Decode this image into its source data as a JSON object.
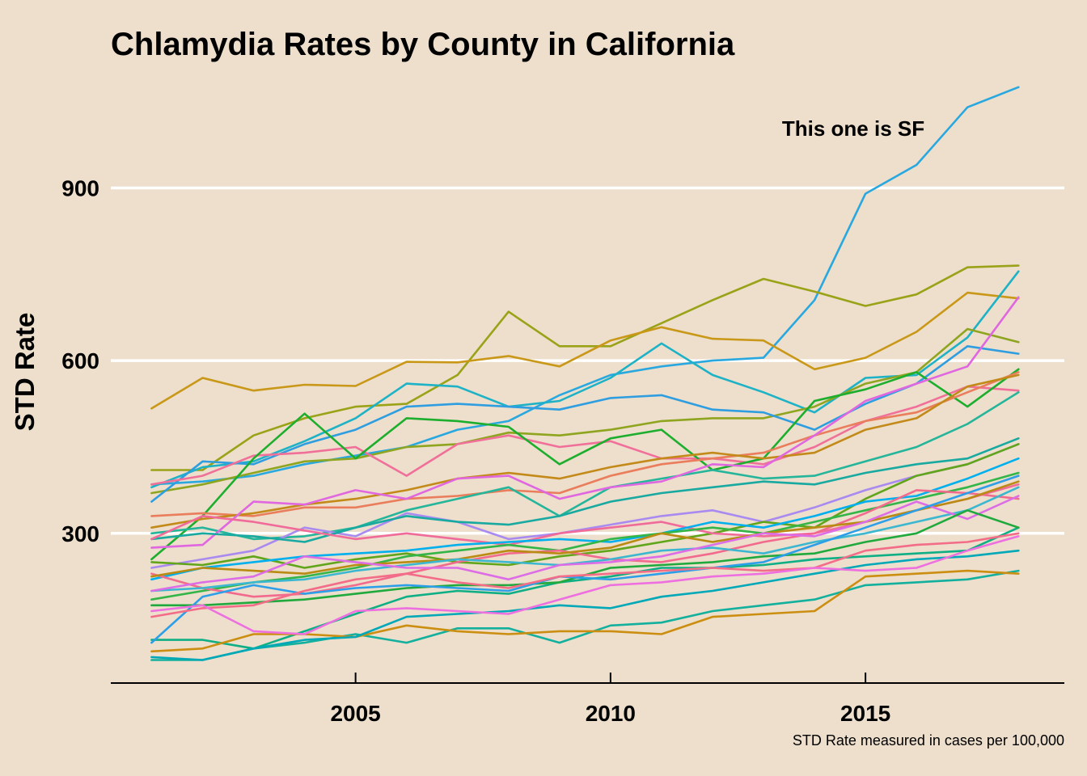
{
  "chart_data": {
    "type": "line",
    "title": "Chlamydia Rates by County in California",
    "xlabel": "",
    "ylabel": "STD Rate",
    "caption": "STD Rate measured in cases per 100,000",
    "annotation": {
      "text": "This one is SF",
      "x": 2015.2,
      "y": 1000
    },
    "xlim": [
      2000.2,
      2018.9
    ],
    "ylim": [
      40,
      1100
    ],
    "x_ticks": [
      2005,
      2010,
      2015
    ],
    "y_ticks": [
      300,
      600,
      900
    ],
    "grid": "horizontal major lines only",
    "legend": "none",
    "x": [
      2001,
      2002,
      2003,
      2004,
      2005,
      2006,
      2007,
      2008,
      2009,
      2010,
      2011,
      2012,
      2013,
      2014,
      2015,
      2016,
      2017,
      2018
    ],
    "series": [
      {
        "color": "#29A8E0",
        "values": [
          385,
          390,
          400,
          420,
          435,
          450,
          480,
          495,
          540,
          575,
          590,
          600,
          605,
          705,
          890,
          940,
          1040,
          1075
        ]
      },
      {
        "color": "#9AA318",
        "values": [
          410,
          410,
          470,
          500,
          520,
          525,
          575,
          685,
          625,
          625,
          665,
          705,
          742,
          720,
          695,
          715,
          762,
          765
        ]
      },
      {
        "color": "#C99818",
        "values": [
          517,
          570,
          548,
          558,
          556,
          598,
          597,
          608,
          590,
          635,
          658,
          638,
          635,
          585,
          605,
          650,
          718,
          708
        ]
      },
      {
        "color": "#1EB2C6",
        "values": [
          380,
          415,
          425,
          460,
          500,
          560,
          555,
          520,
          530,
          570,
          630,
          575,
          545,
          510,
          570,
          575,
          640,
          755
        ]
      },
      {
        "color": "#8FA51F",
        "values": [
          370,
          385,
          405,
          425,
          430,
          450,
          455,
          475,
          470,
          480,
          495,
          500,
          500,
          520,
          560,
          580,
          655,
          632
        ]
      },
      {
        "color": "#2E9EE0",
        "values": [
          355,
          425,
          420,
          455,
          480,
          520,
          525,
          520,
          515,
          535,
          540,
          515,
          510,
          480,
          525,
          560,
          625,
          612
        ]
      },
      {
        "color": "#F0709A",
        "values": [
          385,
          400,
          435,
          440,
          450,
          400,
          455,
          470,
          450,
          460,
          430,
          430,
          420,
          450,
          495,
          520,
          555,
          548
        ]
      },
      {
        "color": "#1DAE2E",
        "values": [
          255,
          330,
          430,
          508,
          430,
          500,
          495,
          485,
          420,
          465,
          480,
          410,
          430,
          530,
          550,
          580,
          520,
          585
        ]
      },
      {
        "color": "#E97D5C",
        "values": [
          330,
          335,
          330,
          345,
          345,
          360,
          365,
          375,
          370,
          400,
          420,
          430,
          440,
          470,
          495,
          510,
          545,
          580
        ]
      },
      {
        "color": "#C38A1A",
        "values": [
          310,
          325,
          335,
          350,
          360,
          375,
          395,
          405,
          395,
          415,
          430,
          440,
          430,
          440,
          480,
          500,
          555,
          575
        ]
      },
      {
        "color": "#25B59A",
        "values": [
          300,
          310,
          290,
          295,
          310,
          340,
          360,
          380,
          330,
          380,
          395,
          410,
          395,
          400,
          425,
          450,
          490,
          545
        ]
      },
      {
        "color": "#A98AF0",
        "values": [
          240,
          255,
          270,
          310,
          295,
          335,
          320,
          290,
          300,
          315,
          330,
          340,
          320,
          345,
          375,
          400,
          420,
          455
        ]
      },
      {
        "color": "#E067E0",
        "values": [
          275,
          280,
          355,
          350,
          375,
          360,
          395,
          400,
          360,
          380,
          390,
          420,
          415,
          470,
          530,
          560,
          590,
          710
        ]
      },
      {
        "color": "#18A9A0",
        "values": [
          290,
          300,
          295,
          285,
          310,
          330,
          320,
          315,
          330,
          355,
          370,
          380,
          390,
          385,
          405,
          420,
          430,
          465
        ]
      },
      {
        "color": "#61A51B",
        "values": [
          250,
          245,
          260,
          240,
          255,
          265,
          250,
          245,
          260,
          270,
          285,
          300,
          320,
          310,
          360,
          400,
          420,
          455
        ]
      },
      {
        "color": "#F06B9A",
        "values": [
          290,
          330,
          320,
          305,
          290,
          300,
          290,
          280,
          300,
          310,
          320,
          300,
          295,
          300,
          320,
          340,
          360,
          385
        ]
      },
      {
        "color": "#00B0EE",
        "values": [
          220,
          240,
          250,
          260,
          265,
          270,
          280,
          285,
          290,
          285,
          300,
          320,
          310,
          330,
          355,
          365,
          395,
          430
        ]
      },
      {
        "color": "#33B548",
        "values": [
          185,
          200,
          215,
          225,
          240,
          260,
          270,
          280,
          270,
          290,
          300,
          310,
          300,
          320,
          340,
          360,
          380,
          405
        ]
      },
      {
        "color": "#F26A8D",
        "values": [
          230,
          205,
          190,
          195,
          210,
          230,
          250,
          265,
          270,
          255,
          250,
          265,
          285,
          300,
          335,
          375,
          370,
          360
        ]
      },
      {
        "color": "#B98B12",
        "values": [
          225,
          240,
          235,
          230,
          245,
          250,
          255,
          270,
          265,
          275,
          300,
          285,
          300,
          310,
          320,
          340,
          360,
          390
        ]
      },
      {
        "color": "#3CB7D0",
        "values": [
          200,
          205,
          215,
          220,
          235,
          245,
          255,
          250,
          245,
          255,
          270,
          275,
          265,
          285,
          300,
          320,
          340,
          380
        ]
      },
      {
        "color": "#DD6DE6",
        "values": [
          200,
          215,
          225,
          260,
          250,
          240,
          240,
          220,
          245,
          250,
          260,
          280,
          300,
          295,
          320,
          355,
          325,
          365
        ]
      },
      {
        "color": "#0FAF85",
        "values": [
          115,
          115,
          100,
          130,
          160,
          190,
          200,
          195,
          215,
          225,
          240,
          240,
          245,
          255,
          260,
          265,
          270,
          310
        ]
      },
      {
        "color": "#20A93C",
        "values": [
          175,
          175,
          180,
          185,
          195,
          205,
          210,
          210,
          215,
          240,
          245,
          250,
          260,
          265,
          285,
          300,
          340,
          310
        ]
      },
      {
        "color": "#2D9FE8",
        "values": [
          110,
          190,
          210,
          195,
          205,
          210,
          205,
          200,
          225,
          220,
          230,
          240,
          250,
          280,
          310,
          340,
          370,
          400
        ]
      },
      {
        "color": "#F36C88",
        "values": [
          155,
          170,
          175,
          200,
          220,
          230,
          215,
          205,
          225,
          230,
          235,
          240,
          235,
          240,
          270,
          280,
          285,
          300
        ]
      },
      {
        "color": "#13B09D",
        "values": [
          80,
          80,
          100,
          110,
          125,
          110,
          135,
          135,
          110,
          140,
          145,
          165,
          175,
          185,
          210,
          215,
          220,
          235
        ]
      },
      {
        "color": "#CC8E10",
        "values": [
          95,
          100,
          125,
          125,
          120,
          140,
          130,
          125,
          130,
          130,
          125,
          155,
          160,
          165,
          225,
          230,
          235,
          230
        ]
      },
      {
        "color": "#00A8B8",
        "values": [
          85,
          80,
          100,
          115,
          120,
          155,
          160,
          165,
          175,
          170,
          190,
          200,
          215,
          230,
          245,
          255,
          260,
          270
        ]
      },
      {
        "color": "#EE6FE0",
        "values": [
          165,
          175,
          130,
          125,
          165,
          170,
          165,
          160,
          185,
          210,
          215,
          225,
          230,
          240,
          235,
          240,
          270,
          295
        ]
      }
    ]
  }
}
